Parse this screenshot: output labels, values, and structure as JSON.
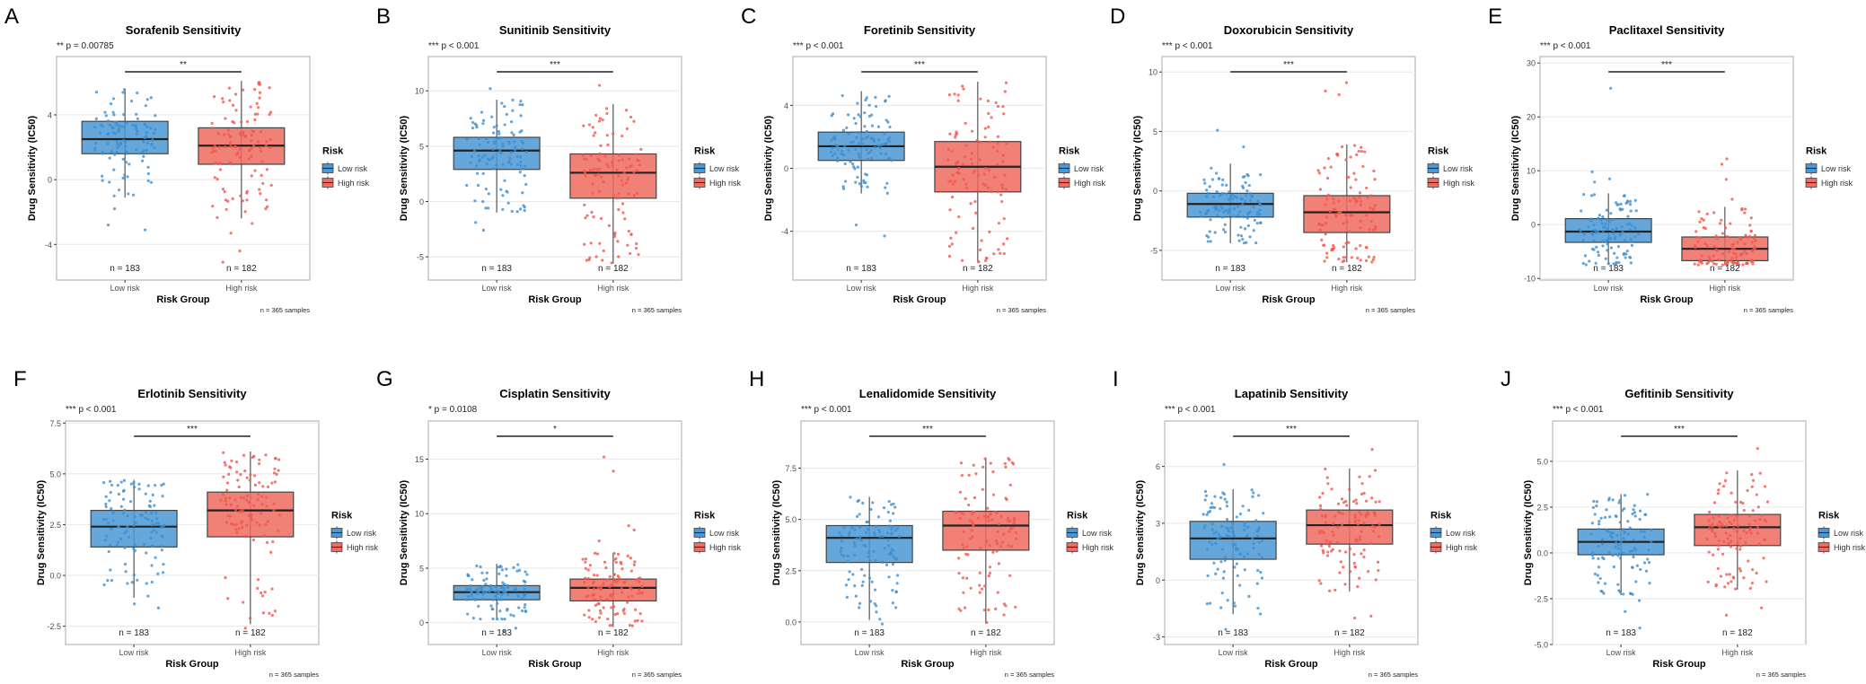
{
  "colors": {
    "low": "#4a98d3",
    "high": "#ef6a5f",
    "low_point": "#3d8fd1",
    "high_point": "#f0574c",
    "grid": "#ebebeb",
    "frame": "#a8a8a8"
  },
  "common": {
    "ylabel": "Drug Sensitivity (IC50)",
    "xlabel": "Risk Group",
    "legend_title": "Risk",
    "legend_items": [
      "Low risk",
      "High risk"
    ],
    "categories": [
      "Low risk",
      "High risk"
    ],
    "n_labels": [
      "n = 183",
      "n = 182"
    ],
    "samples_note": "n = 365 samples"
  },
  "chart_data": [
    {
      "letter": "A",
      "type": "box",
      "title": "Sorafenib Sensitivity",
      "p_label": "** p = 0.00785",
      "sig": "**",
      "ylim": [
        -6.2,
        7.6
      ],
      "yticks": [
        -4,
        0,
        4
      ],
      "ytick_labels": [
        "-4",
        "0",
        "4"
      ],
      "series": [
        {
          "name": "Low risk",
          "q1": 1.6,
          "median": 2.5,
          "q3": 3.6,
          "whisker_low": -1.1,
          "whisker_high": 5.6,
          "outliers": [
            -2.8,
            -3.1,
            -1.8
          ]
        },
        {
          "name": "High risk",
          "q1": 0.95,
          "median": 2.1,
          "q3": 3.2,
          "whisker_low": -2.4,
          "whisker_high": 6.1,
          "outliers": [
            -2.7,
            -3.3,
            -4.4,
            -5.1
          ]
        }
      ]
    },
    {
      "letter": "B",
      "type": "box",
      "title": "Sunitinib Sensitivity",
      "p_label": "*** p < 0.001",
      "sig": "***",
      "ylim": [
        -7.1,
        13.1
      ],
      "yticks": [
        -5,
        0,
        5,
        10
      ],
      "ytick_labels": [
        "-5",
        "0",
        "5",
        "10"
      ],
      "series": [
        {
          "name": "Low risk",
          "q1": 2.9,
          "median": 4.6,
          "q3": 5.8,
          "whisker_low": -1.0,
          "whisker_high": 9.2,
          "outliers": [
            10.2,
            -2.6,
            -1.9
          ]
        },
        {
          "name": "High risk",
          "q1": 0.3,
          "median": 2.6,
          "q3": 4.3,
          "whisker_low": -5.6,
          "whisker_high": 8.8,
          "outliers": [
            10.5
          ]
        }
      ]
    },
    {
      "letter": "C",
      "type": "box",
      "title": "Foretinib Sensitivity",
      "p_label": "*** p < 0.001",
      "sig": "***",
      "ylim": [
        -7.1,
        7.1
      ],
      "yticks": [
        -4,
        0,
        4
      ],
      "ytick_labels": [
        "-4",
        "0",
        "4"
      ],
      "series": [
        {
          "name": "Low risk",
          "q1": 0.5,
          "median": 1.4,
          "q3": 2.3,
          "whisker_low": -1.6,
          "whisker_high": 4.9,
          "outliers": [
            -3.6,
            -4.3
          ]
        },
        {
          "name": "High risk",
          "q1": -1.5,
          "median": 0.1,
          "q3": 1.7,
          "whisker_low": -6.0,
          "whisker_high": 5.5,
          "outliers": []
        }
      ]
    },
    {
      "letter": "D",
      "type": "box",
      "title": "Doxorubicin Sensitivity",
      "p_label": "*** p < 0.001",
      "sig": "***",
      "ylim": [
        -7.5,
        11.3
      ],
      "yticks": [
        -5,
        0,
        5,
        10
      ],
      "ytick_labels": [
        "-5",
        "0",
        "5",
        "10"
      ],
      "series": [
        {
          "name": "Low risk",
          "q1": -2.2,
          "median": -1.1,
          "q3": -0.2,
          "whisker_low": -4.4,
          "whisker_high": 2.3,
          "outliers": [
            5.1,
            3.7
          ]
        },
        {
          "name": "High risk",
          "q1": -3.5,
          "median": -1.8,
          "q3": -0.4,
          "whisker_low": -6.0,
          "whisker_high": 3.9,
          "outliers": [
            8.1,
            8.4,
            9.1
          ]
        }
      ]
    },
    {
      "letter": "E",
      "type": "box",
      "title": "Paclitaxel Sensitivity",
      "p_label": "*** p < 0.001",
      "sig": "***",
      "ylim": [
        -10.3,
        31.2
      ],
      "yticks": [
        -10,
        0,
        10,
        20,
        30
      ],
      "ytick_labels": [
        "-10",
        "0",
        "10",
        "20",
        "30"
      ],
      "series": [
        {
          "name": "Low risk",
          "q1": -3.3,
          "median": -1.3,
          "q3": 1.1,
          "whisker_low": -7.5,
          "whisker_high": 5.8,
          "outliers": [
            25.3,
            9.8,
            8.5,
            7.9
          ]
        },
        {
          "name": "High risk",
          "q1": -6.7,
          "median": -4.5,
          "q3": -2.3,
          "whisker_low": -7.5,
          "whisker_high": 3.3,
          "outliers": [
            12.2,
            11.2,
            8.4,
            4.7
          ]
        }
      ]
    },
    {
      "letter": "F",
      "type": "box",
      "title": "Erlotinib Sensitivity",
      "p_label": "*** p < 0.001",
      "sig": "***",
      "ylim": [
        -3.4,
        7.6
      ],
      "yticks": [
        -2.5,
        0,
        2.5,
        5,
        7.5
      ],
      "ytick_labels": [
        "-2.5",
        "0.0",
        "2.5",
        "5.0",
        "7.5"
      ],
      "series": [
        {
          "name": "Low risk",
          "q1": 1.4,
          "median": 2.4,
          "q3": 3.2,
          "whisker_low": -1.1,
          "whisker_high": 4.7,
          "outliers": [
            -1.6,
            -1.4
          ]
        },
        {
          "name": "High risk",
          "q1": 1.9,
          "median": 3.2,
          "q3": 4.1,
          "whisker_low": -2.4,
          "whisker_high": 6.1,
          "outliers": [
            -2.6
          ]
        }
      ]
    },
    {
      "letter": "G",
      "type": "box",
      "title": "Cisplatin Sensitivity",
      "p_label": "* p = 0.0108",
      "sig": "*",
      "ylim": [
        -2.0,
        18.5
      ],
      "yticks": [
        0,
        5,
        10,
        15
      ],
      "ytick_labels": [
        "0",
        "5",
        "10",
        "15"
      ],
      "series": [
        {
          "name": "Low risk",
          "q1": 2.1,
          "median": 2.8,
          "q3": 3.4,
          "whisker_low": 0.3,
          "whisker_high": 5.4,
          "outliers": [
            -0.5,
            -0.8
          ]
        },
        {
          "name": "High risk",
          "q1": 2.0,
          "median": 3.2,
          "q3": 4.0,
          "whisker_low": -0.4,
          "whisker_high": 6.4,
          "outliers": [
            15.2,
            13.9,
            8.9,
            8.5,
            7.5
          ]
        }
      ]
    },
    {
      "letter": "H",
      "type": "box",
      "title": "Lenalidomide Sensitivity",
      "p_label": "*** p < 0.001",
      "sig": "***",
      "ylim": [
        -1.1,
        9.8
      ],
      "yticks": [
        0,
        2.5,
        5,
        7.5
      ],
      "ytick_labels": [
        "0.0",
        "2.5",
        "5.0",
        "7.5"
      ],
      "series": [
        {
          "name": "Low risk",
          "q1": 2.9,
          "median": 4.1,
          "q3": 4.7,
          "whisker_low": 0.1,
          "whisker_high": 6.1,
          "outliers": [
            -0.1
          ]
        },
        {
          "name": "High risk",
          "q1": 3.5,
          "median": 4.7,
          "q3": 5.4,
          "whisker_low": -0.1,
          "whisker_high": 8.0,
          "outliers": []
        }
      ]
    },
    {
      "letter": "I",
      "type": "box",
      "title": "Lapatinib Sensitivity",
      "p_label": "*** p < 0.001",
      "sig": "***",
      "ylim": [
        -3.4,
        8.4
      ],
      "yticks": [
        -3,
        0,
        3,
        6
      ],
      "ytick_labels": [
        "-3",
        "0",
        "3",
        "6"
      ],
      "series": [
        {
          "name": "Low risk",
          "q1": 1.1,
          "median": 2.2,
          "q3": 3.1,
          "whisker_low": -1.8,
          "whisker_high": 4.8,
          "outliers": [
            6.1,
            -2.6
          ]
        },
        {
          "name": "High risk",
          "q1": 1.9,
          "median": 2.9,
          "q3": 3.7,
          "whisker_low": -0.6,
          "whisker_high": 5.9,
          "outliers": [
            6.9,
            -2.0,
            -1.9
          ]
        }
      ]
    },
    {
      "letter": "J",
      "type": "box",
      "title": "Gefitinib Sensitivity",
      "p_label": "*** p < 0.001",
      "sig": "***",
      "ylim": [
        -5.0,
        7.2
      ],
      "yticks": [
        -5,
        -2.5,
        0,
        2.5,
        5
      ],
      "ytick_labels": [
        "-5.0",
        "-2.5",
        "0.0",
        "2.5",
        "5.0"
      ],
      "series": [
        {
          "name": "Low risk",
          "q1": -0.1,
          "median": 0.6,
          "q3": 1.3,
          "whisker_low": -2.3,
          "whisker_high": 3.2,
          "outliers": [
            -4.1,
            -3.2,
            -2.6
          ]
        },
        {
          "name": "High risk",
          "q1": 0.4,
          "median": 1.4,
          "q3": 2.1,
          "whisker_low": -2.0,
          "whisker_high": 4.5,
          "outliers": [
            5.7,
            -3.4,
            -3.0
          ]
        }
      ]
    }
  ]
}
